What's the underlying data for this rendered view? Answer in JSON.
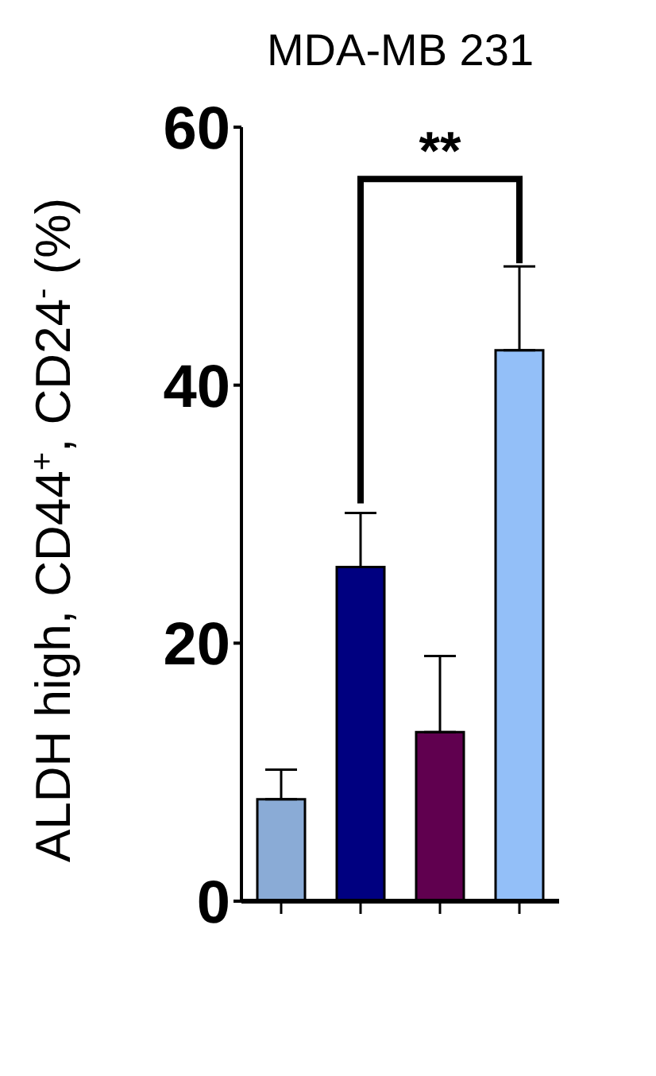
{
  "chart_data": {
    "type": "bar",
    "title": "MDA-MB 231",
    "ylabel": "ALDH high, CD44$^{+}$, CD24$^{-}$ (%)",
    "categories": [
      null,
      null,
      null,
      null
    ],
    "values": [
      7.9,
      25.9,
      13.1,
      42.7
    ],
    "colors": [
      "#8aabd6",
      "#000080",
      "#60004f",
      "#93bff8"
    ],
    "errors": [
      2.3,
      4.2,
      5.9,
      6.5
    ],
    "ylim": [
      0,
      60
    ],
    "yticks": [
      0,
      20,
      40,
      60
    ],
    "annotations": [
      "**"
    ]
  }
}
